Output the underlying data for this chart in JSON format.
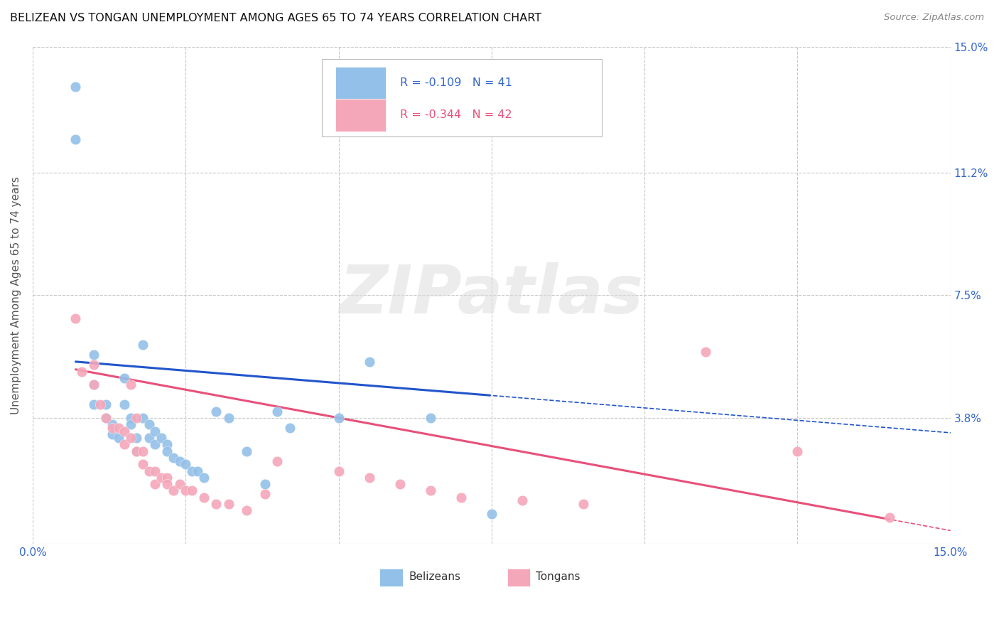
{
  "title": "BELIZEAN VS TONGAN UNEMPLOYMENT AMONG AGES 65 TO 74 YEARS CORRELATION CHART",
  "source": "Source: ZipAtlas.com",
  "ylabel": "Unemployment Among Ages 65 to 74 years",
  "xlim": [
    0,
    0.15
  ],
  "ylim": [
    0,
    0.15
  ],
  "belizean_color": "#92c0e8",
  "tongan_color": "#f4a7b9",
  "belizean_line_color": "#2255cc",
  "tongan_line_color": "#e8507a",
  "legend_R_belizean": "R = -0.109",
  "legend_N_belizean": "N = 41",
  "legend_R_tongan": "R = -0.344",
  "legend_N_tongan": "N = 42",
  "watermark_text": "ZIPatlas",
  "belizean_x": [
    0.007,
    0.007,
    0.01,
    0.01,
    0.01,
    0.012,
    0.012,
    0.013,
    0.013,
    0.014,
    0.015,
    0.015,
    0.016,
    0.016,
    0.017,
    0.017,
    0.018,
    0.018,
    0.019,
    0.019,
    0.02,
    0.02,
    0.021,
    0.022,
    0.022,
    0.023,
    0.024,
    0.025,
    0.026,
    0.027,
    0.028,
    0.03,
    0.032,
    0.035,
    0.038,
    0.04,
    0.042,
    0.05,
    0.055,
    0.065,
    0.075
  ],
  "belizean_y": [
    0.138,
    0.122,
    0.057,
    0.048,
    0.042,
    0.042,
    0.038,
    0.036,
    0.033,
    0.032,
    0.05,
    0.042,
    0.038,
    0.036,
    0.032,
    0.028,
    0.06,
    0.038,
    0.036,
    0.032,
    0.034,
    0.03,
    0.032,
    0.03,
    0.028,
    0.026,
    0.025,
    0.024,
    0.022,
    0.022,
    0.02,
    0.04,
    0.038,
    0.028,
    0.018,
    0.04,
    0.035,
    0.038,
    0.055,
    0.038,
    0.009
  ],
  "tongan_x": [
    0.007,
    0.008,
    0.01,
    0.01,
    0.011,
    0.012,
    0.013,
    0.014,
    0.015,
    0.015,
    0.016,
    0.016,
    0.017,
    0.017,
    0.018,
    0.018,
    0.019,
    0.02,
    0.02,
    0.021,
    0.022,
    0.022,
    0.023,
    0.024,
    0.025,
    0.026,
    0.028,
    0.03,
    0.032,
    0.035,
    0.038,
    0.04,
    0.05,
    0.055,
    0.06,
    0.065,
    0.07,
    0.08,
    0.09,
    0.11,
    0.125,
    0.14
  ],
  "tongan_y": [
    0.068,
    0.052,
    0.054,
    0.048,
    0.042,
    0.038,
    0.035,
    0.035,
    0.034,
    0.03,
    0.048,
    0.032,
    0.038,
    0.028,
    0.028,
    0.024,
    0.022,
    0.022,
    0.018,
    0.02,
    0.02,
    0.018,
    0.016,
    0.018,
    0.016,
    0.016,
    0.014,
    0.012,
    0.012,
    0.01,
    0.015,
    0.025,
    0.022,
    0.02,
    0.018,
    0.016,
    0.014,
    0.013,
    0.012,
    0.058,
    0.028,
    0.008
  ],
  "belizean_line_slope": -0.109,
  "tongan_line_slope": -0.344
}
